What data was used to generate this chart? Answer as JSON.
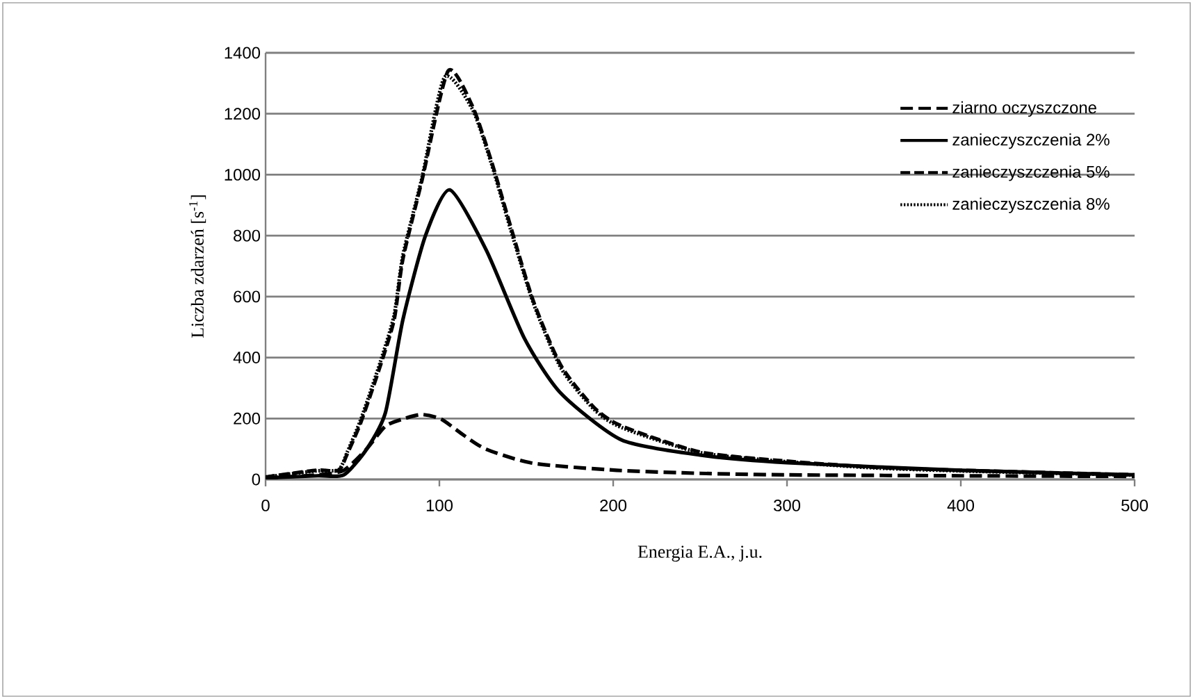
{
  "chart_data": {
    "type": "line",
    "xlabel": "Energia E.A., j.u.",
    "ylabel": "Liczba zdarzeń [s$^{-1}$]",
    "xlim": [
      0,
      500
    ],
    "ylim": [
      0,
      1400
    ],
    "xticks": [
      0,
      100,
      200,
      300,
      400,
      500
    ],
    "yticks": [
      0,
      200,
      400,
      600,
      800,
      1000,
      1200,
      1400
    ],
    "grid": "y",
    "legend": "top right",
    "marker": "none",
    "series": [
      {
        "name": "ziarno oczyszczone",
        "color": "#000000",
        "line_style": "dashdot",
        "x": [
          0,
          30,
          45,
          58,
          69,
          80,
          90,
          101,
          114,
          127,
          154,
          202,
          250,
          300,
          400,
          500
        ],
        "values": [
          5,
          15,
          30,
          99,
          175,
          200,
          213,
          198,
          145,
          99,
          53,
          30,
          20,
          15,
          12,
          10
        ]
      },
      {
        "name": "zanieczyszczenia 2%",
        "color": "#000000",
        "line_style": "solid",
        "x": [
          0,
          30,
          45,
          58,
          69,
          79,
          92,
          106,
          127,
          149,
          170,
          205,
          250,
          300,
          400,
          500
        ],
        "values": [
          5,
          12,
          15,
          98,
          220,
          524,
          800,
          950,
          752,
          462,
          282,
          129,
          80,
          55,
          30,
          15
        ]
      },
      {
        "name": "zanieczyszczenia 5%",
        "color": "#000000",
        "line_style": "dashed",
        "x": [
          0,
          29,
          42,
          47,
          55,
          66,
          74,
          79,
          90,
          105,
          119,
          130,
          141,
          154,
          170,
          189,
          205,
          250,
          300,
          350,
          400,
          500
        ],
        "values": [
          8,
          30,
          30,
          84,
          190,
          373,
          525,
          723,
          982,
          1340,
          1225,
          1043,
          830,
          586,
          373,
          236,
          175,
          90,
          60,
          40,
          30,
          15
        ]
      },
      {
        "name": "zanieczyszczenia 8%",
        "color": "#000000",
        "line_style": "dotted",
        "x": [
          0,
          29,
          42,
          47,
          55,
          66,
          74,
          79,
          90,
          103,
          119,
          130,
          141,
          154,
          170,
          189,
          205,
          250,
          300,
          350,
          400,
          500
        ],
        "values": [
          8,
          28,
          32,
          90,
          200,
          385,
          540,
          735,
          990,
          1320,
          1215,
          1035,
          820,
          580,
          365,
          230,
          170,
          88,
          58,
          38,
          28,
          14
        ]
      }
    ]
  }
}
